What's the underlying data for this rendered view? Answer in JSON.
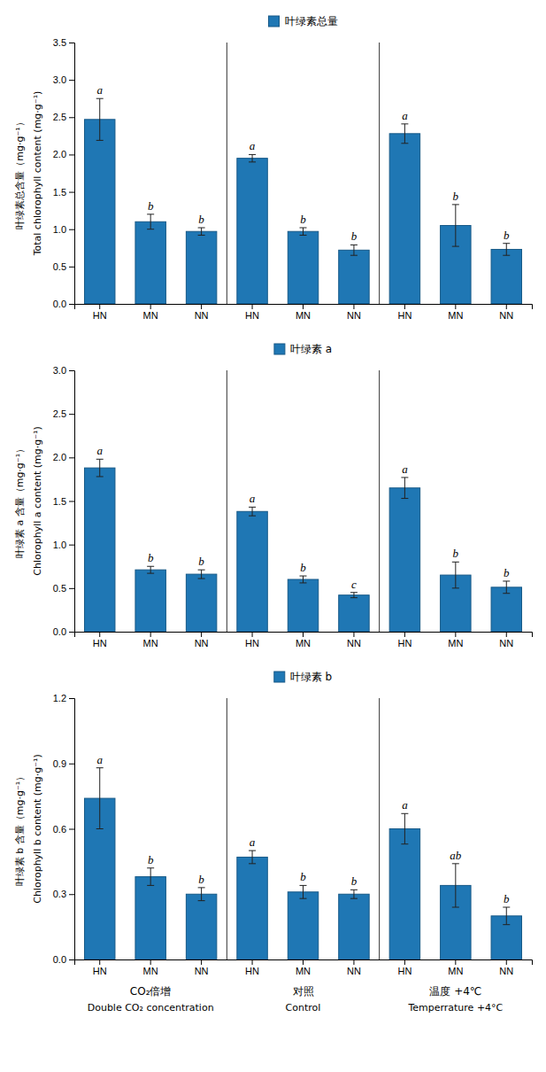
{
  "chart_data": [
    {
      "type": "bar",
      "ylabel": "Total chlorophyll content (mg·g⁻¹)",
      "ylabel_cn": "叶绿素总含量（mg·g⁻¹）",
      "categories": [
        "HN",
        "MN",
        "NN",
        "HN",
        "MN",
        "NN",
        "HN",
        "MN",
        "NN"
      ],
      "series": [
        {
          "name": "叶绿素总量",
          "values": [
            2.47,
            1.1,
            0.97,
            1.95,
            0.97,
            0.72,
            2.28,
            1.05,
            0.73
          ],
          "errors": [
            0.28,
            0.1,
            0.05,
            0.05,
            0.05,
            0.07,
            0.13,
            0.28,
            0.08
          ]
        }
      ],
      "annotations": [
        "a",
        "b",
        "b",
        "a",
        "b",
        "b",
        "a",
        "b",
        "b"
      ],
      "ylim": [
        0,
        3.5
      ],
      "yticks": [
        {
          "value": 0.0,
          "label": "0.0"
        },
        0.5,
        {
          "value": 1.0,
          "label": "1.0"
        },
        1.5,
        {
          "value": 2.0,
          "label": "2.0"
        },
        2.5,
        {
          "value": 3.0,
          "label": "3.0"
        },
        3.5
      ],
      "legend": "top",
      "grid": false
    },
    {
      "type": "bar",
      "ylabel": "Chlorophyll a content (mg·g⁻¹)",
      "ylabel_cn": "叶绿素 a 含量（mg·g⁻¹）",
      "categories": [
        "HN",
        "MN",
        "NN",
        "HN",
        "MN",
        "NN",
        "HN",
        "MN",
        "NN"
      ],
      "series": [
        {
          "name": "叶绿素 a",
          "values": [
            1.88,
            0.71,
            0.66,
            1.38,
            0.6,
            0.42,
            1.65,
            0.65,
            0.51
          ],
          "errors": [
            0.1,
            0.04,
            0.05,
            0.05,
            0.04,
            0.03,
            0.12,
            0.15,
            0.07
          ]
        }
      ],
      "annotations": [
        "a",
        "b",
        "b",
        "a",
        "b",
        "c",
        "a",
        "b",
        "b"
      ],
      "ylim": [
        0,
        3.0
      ],
      "yticks": [
        {
          "value": 0.0,
          "label": "0.0"
        },
        0.5,
        {
          "value": 1.0,
          "label": "1.0"
        },
        1.5,
        {
          "value": 2.0,
          "label": "2.0"
        },
        2.5,
        {
          "value": 3.0,
          "label": "3.0"
        }
      ],
      "legend": "top",
      "grid": false
    },
    {
      "type": "bar",
      "ylabel": "Chlorophyll b content (mg·g⁻¹)",
      "ylabel_cn": "叶绿素 b 含量（mg·g⁻¹）",
      "categories": [
        "HN",
        "MN",
        "NN",
        "HN",
        "MN",
        "NN",
        "HN",
        "MN",
        "NN"
      ],
      "series": [
        {
          "name": "叶绿素 b",
          "values": [
            0.74,
            0.38,
            0.3,
            0.47,
            0.31,
            0.3,
            0.6,
            0.34,
            0.2
          ],
          "errors": [
            0.14,
            0.04,
            0.03,
            0.03,
            0.03,
            0.02,
            0.07,
            0.1,
            0.04
          ]
        }
      ],
      "annotations": [
        "a",
        "b",
        "b",
        "a",
        "b",
        "b",
        "a",
        "ab",
        "b"
      ],
      "ylim": [
        0,
        1.2
      ],
      "yticks": [
        {
          "value": 0.0,
          "label": "0.0"
        },
        0.3,
        0.6,
        0.9,
        1.2
      ],
      "legend": "top",
      "grid": false,
      "group_labels": [
        "CO₂倍增",
        "对照",
        "温度 +4℃"
      ],
      "group_labels_en": [
        "Double CO₂ concentration",
        "Control",
        "Temperrature +4°C"
      ]
    }
  ]
}
